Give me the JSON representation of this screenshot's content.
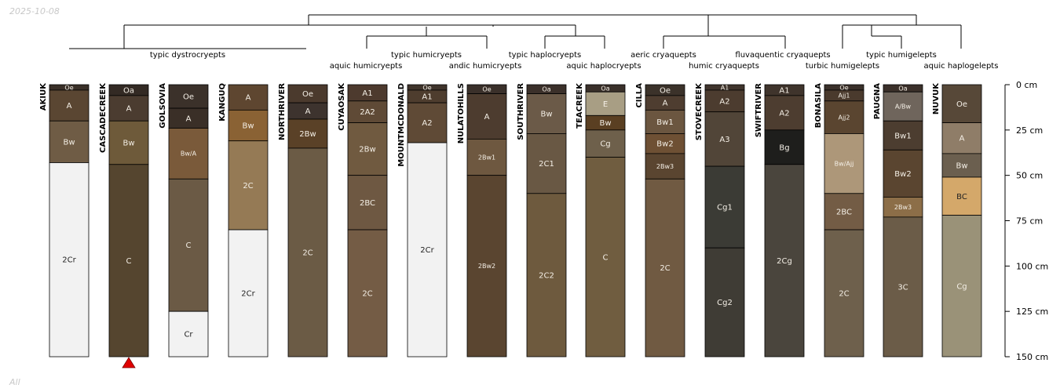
{
  "date_stamp": "2025-10-08",
  "footer_stamp": "All",
  "depth_axis": {
    "unit": "cm",
    "max": 150,
    "ticks": [
      0,
      25,
      50,
      75,
      100,
      125,
      150
    ]
  },
  "taxa_row1": [
    "typic dystrocryepts",
    "typic humicryepts",
    "typic haplocryepts",
    "aeric cryaquepts",
    "fluvaquentic cryaquepts",
    "typic humigelepts"
  ],
  "taxa_row2": [
    "aquic humicryepts",
    "andic humicryepts",
    "aquic haplocryepts",
    "humic cryaquepts",
    "turbic humigelepts",
    "aquic haplogelepts"
  ],
  "profiles": [
    {
      "name": "AKIUK",
      "horizons": [
        {
          "name": "Oe",
          "top": 0,
          "bottom": 3,
          "color": "#3a3028"
        },
        {
          "name": "A",
          "top": 3,
          "bottom": 20,
          "color": "#5a4632"
        },
        {
          "name": "Bw",
          "top": 20,
          "bottom": 43,
          "color": "#6f5c45"
        },
        {
          "name": "2Cr",
          "top": 43,
          "bottom": 150,
          "color": "#f2f2f2"
        }
      ]
    },
    {
      "name": "CASCADECREEK",
      "marker": true,
      "horizons": [
        {
          "name": "Oa",
          "top": 0,
          "bottom": 6,
          "color": "#332a24"
        },
        {
          "name": "A",
          "top": 6,
          "bottom": 20,
          "color": "#4b3c30"
        },
        {
          "name": "Bw",
          "top": 20,
          "bottom": 44,
          "color": "#6e5a3a"
        },
        {
          "name": "C",
          "top": 44,
          "bottom": 150,
          "color": "#55452f"
        }
      ]
    },
    {
      "name": "GOLSOVIA",
      "horizons": [
        {
          "name": "Oe",
          "top": 0,
          "bottom": 13,
          "color": "#3b312a"
        },
        {
          "name": "A",
          "top": 13,
          "bottom": 24,
          "color": "#3a2f27"
        },
        {
          "name": "Bw/A",
          "top": 24,
          "bottom": 52,
          "color": "#7a5a3a"
        },
        {
          "name": "C",
          "top": 52,
          "bottom": 125,
          "color": "#6b5a45"
        },
        {
          "name": "Cr",
          "top": 125,
          "bottom": 150,
          "color": "#f2f2f2"
        }
      ]
    },
    {
      "name": "KANGUQ",
      "horizons": [
        {
          "name": "A",
          "top": 0,
          "bottom": 14,
          "color": "#5e4630"
        },
        {
          "name": "Bw",
          "top": 14,
          "bottom": 31,
          "color": "#8a6234"
        },
        {
          "name": "2C",
          "top": 31,
          "bottom": 80,
          "color": "#957a55"
        },
        {
          "name": "2Cr",
          "top": 80,
          "bottom": 150,
          "color": "#f2f2f2"
        }
      ]
    },
    {
      "name": "NORTHRIVER",
      "horizons": [
        {
          "name": "Oe",
          "top": 0,
          "bottom": 10,
          "color": "#4b3a2d"
        },
        {
          "name": "A",
          "top": 10,
          "bottom": 19,
          "color": "#3d332e"
        },
        {
          "name": "2Bw",
          "top": 19,
          "bottom": 35,
          "color": "#5a4127"
        },
        {
          "name": "2C",
          "top": 35,
          "bottom": 150,
          "color": "#6b5b45"
        }
      ]
    },
    {
      "name": "CUYAOSAK",
      "horizons": [
        {
          "name": "A1",
          "top": 0,
          "bottom": 9,
          "color": "#4d3a2e"
        },
        {
          "name": "2A2",
          "top": 9,
          "bottom": 21,
          "color": "#5f4a36"
        },
        {
          "name": "2Bw",
          "top": 21,
          "bottom": 50,
          "color": "#705a40"
        },
        {
          "name": "2BC",
          "top": 50,
          "bottom": 80,
          "color": "#6e5842"
        },
        {
          "name": "2C",
          "top": 80,
          "bottom": 150,
          "color": "#745c45"
        }
      ]
    },
    {
      "name": "MOUNTMCDONALD",
      "horizons": [
        {
          "name": "Oe",
          "top": 0,
          "bottom": 3,
          "color": "#3f342b"
        },
        {
          "name": "A1",
          "top": 3,
          "bottom": 10,
          "color": "#4e3d2e"
        },
        {
          "name": "A2",
          "top": 10,
          "bottom": 32,
          "color": "#5f4a36"
        },
        {
          "name": "2Cr",
          "top": 32,
          "bottom": 150,
          "color": "#f2f2f2"
        }
      ]
    },
    {
      "name": "NULATOHILLS",
      "horizons": [
        {
          "name": "Oe",
          "top": 0,
          "bottom": 5,
          "color": "#3a302a"
        },
        {
          "name": "A",
          "top": 5,
          "bottom": 30,
          "color": "#4d3c2f"
        },
        {
          "name": "2Bw1",
          "top": 30,
          "bottom": 50,
          "color": "#6e5840"
        },
        {
          "name": "2Bw2",
          "top": 50,
          "bottom": 150,
          "color": "#5a4530"
        }
      ]
    },
    {
      "name": "SOUTHRIVER",
      "horizons": [
        {
          "name": "Oa",
          "top": 0,
          "bottom": 5,
          "color": "#3b302a"
        },
        {
          "name": "Bw",
          "top": 5,
          "bottom": 27,
          "color": "#6b5a48"
        },
        {
          "name": "2C1",
          "top": 27,
          "bottom": 60,
          "color": "#695844"
        },
        {
          "name": "2C2",
          "top": 60,
          "bottom": 150,
          "color": "#6e5a3e"
        }
      ]
    },
    {
      "name": "TEACREEK",
      "horizons": [
        {
          "name": "Oa",
          "top": 0,
          "bottom": 4,
          "color": "#3a302a"
        },
        {
          "name": "E",
          "top": 4,
          "bottom": 17,
          "color": "#a89e84"
        },
        {
          "name": "Bw",
          "top": 17,
          "bottom": 25,
          "color": "#5a3f22"
        },
        {
          "name": "Cg",
          "top": 25,
          "bottom": 40,
          "color": "#6e604b"
        },
        {
          "name": "C",
          "top": 40,
          "bottom": 150,
          "color": "#705d40"
        }
      ]
    },
    {
      "name": "CILLA",
      "horizons": [
        {
          "name": "Oe",
          "top": 0,
          "bottom": 6,
          "color": "#3b322a"
        },
        {
          "name": "A",
          "top": 6,
          "bottom": 14,
          "color": "#4e3d30"
        },
        {
          "name": "Bw1",
          "top": 14,
          "bottom": 27,
          "color": "#6b5640"
        },
        {
          "name": "Bw2",
          "top": 27,
          "bottom": 38,
          "color": "#6e5034"
        },
        {
          "name": "2Bw3",
          "top": 38,
          "bottom": 52,
          "color": "#5a4530"
        },
        {
          "name": "2C",
          "top": 52,
          "bottom": 150,
          "color": "#705a42"
        }
      ]
    },
    {
      "name": "STOVECREEK",
      "horizons": [
        {
          "name": "A1",
          "top": 0,
          "bottom": 3,
          "color": "#3f342c"
        },
        {
          "name": "A2",
          "top": 3,
          "bottom": 15,
          "color": "#4c3c2f"
        },
        {
          "name": "A3",
          "top": 15,
          "bottom": 45,
          "color": "#514538"
        },
        {
          "name": "Cg1",
          "top": 45,
          "bottom": 90,
          "color": "#3b3b35"
        },
        {
          "name": "Cg2",
          "top": 90,
          "bottom": 150,
          "color": "#3f3c35"
        }
      ]
    },
    {
      "name": "SWIFTRIVER",
      "horizons": [
        {
          "name": "A1",
          "top": 0,
          "bottom": 6,
          "color": "#3f342c"
        },
        {
          "name": "A2",
          "top": 6,
          "bottom": 25,
          "color": "#4d3d30"
        },
        {
          "name": "Bg",
          "top": 25,
          "bottom": 44,
          "color": "#1e1e1c"
        },
        {
          "name": "2Cg",
          "top": 44,
          "bottom": 150,
          "color": "#4a453d"
        }
      ]
    },
    {
      "name": "BONASILA",
      "horizons": [
        {
          "name": "Oe",
          "top": 0,
          "bottom": 3,
          "color": "#3a302a"
        },
        {
          "name": "Ajj1",
          "top": 3,
          "bottom": 9,
          "color": "#4a3a2d"
        },
        {
          "name": "Ajj2",
          "top": 9,
          "bottom": 27,
          "color": "#5a4530"
        },
        {
          "name": "Bw/Ajj",
          "top": 27,
          "bottom": 60,
          "color": "#ad9779"
        },
        {
          "name": "2BC",
          "top": 60,
          "bottom": 80,
          "color": "#735c45"
        },
        {
          "name": "2C",
          "top": 80,
          "bottom": 150,
          "color": "#6e604c"
        }
      ]
    },
    {
      "name": "PAUGNA",
      "horizons": [
        {
          "name": "Oa",
          "top": 0,
          "bottom": 4,
          "color": "#3b302a"
        },
        {
          "name": "A/Bw",
          "top": 4,
          "bottom": 20,
          "color": "#6f655c"
        },
        {
          "name": "Bw1",
          "top": 20,
          "bottom": 36,
          "color": "#4c3d30"
        },
        {
          "name": "Bw2",
          "top": 36,
          "bottom": 62,
          "color": "#5a4530"
        },
        {
          "name": "2Bw3",
          "top": 62,
          "bottom": 73,
          "color": "#8c6e48"
        },
        {
          "name": "3C",
          "top": 73,
          "bottom": 150,
          "color": "#6b5c48"
        }
      ]
    },
    {
      "name": "NUVUK",
      "horizons": [
        {
          "name": "Oe",
          "top": 0,
          "bottom": 21,
          "color": "#574838"
        },
        {
          "name": "A",
          "top": 21,
          "bottom": 38,
          "color": "#8f7d68"
        },
        {
          "name": "Bw",
          "top": 38,
          "bottom": 51,
          "color": "#6b5f4f"
        },
        {
          "name": "BC",
          "top": 51,
          "bottom": 72,
          "color": "#d4a86a"
        },
        {
          "name": "Cg",
          "top": 72,
          "bottom": 150,
          "color": "#9a9278"
        }
      ]
    }
  ]
}
